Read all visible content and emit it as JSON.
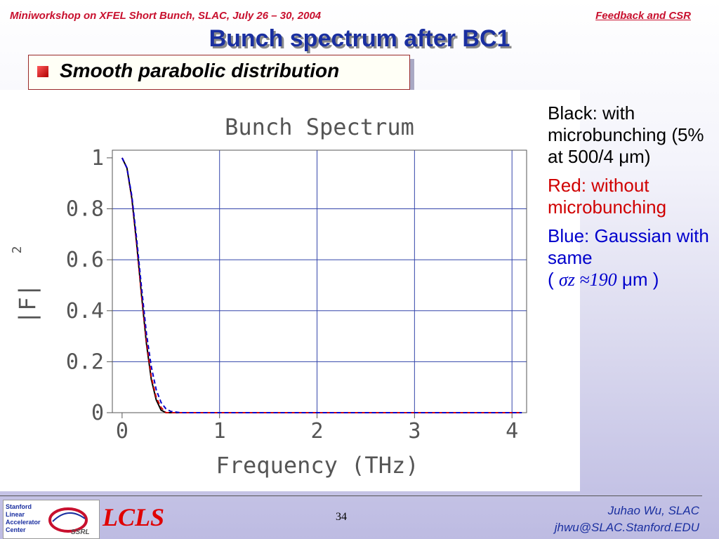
{
  "header": {
    "left": "Miniworkshop on XFEL Short Bunch, SLAC, July 26 – 30, 2004",
    "right": "Feedback and CSR"
  },
  "slide_title": "Bunch spectrum after BC1",
  "subtitle": "Smooth parabolic distribution",
  "notes": {
    "black": "Black: with microbunching (5% at 500/4 μm)",
    "red": "Red: without microbunching",
    "blue_prefix": "Blue: Gaussian with same",
    "blue_open": "(",
    "blue_sigma": "σz ≈190",
    "blue_unit": "μm )"
  },
  "footer": {
    "logo_letters": "Stanford Linear Accelerator Center",
    "logo_ssrl": "SSRL",
    "lcls": "LCLS",
    "page": "34",
    "author": "Juhao Wu, SLAC",
    "email": "jhwu@SLAC.Stanford.EDU"
  },
  "colors": {
    "black": "#000000",
    "red": "#d00000",
    "blue": "#0000cc",
    "title": "#1a2fa0",
    "header": "#c8102e"
  },
  "chart_data": {
    "type": "line",
    "title": "Bunch Spectrum",
    "xlabel": "Frequency (THz)",
    "ylabel": "|F|",
    "ylabel_superscript": "2",
    "xlim": [
      -0.1,
      4.15
    ],
    "ylim": [
      0,
      1.03
    ],
    "xticks": [
      0,
      1,
      2,
      3,
      4
    ],
    "xtick_labels": [
      "0",
      "1",
      "2",
      "3",
      "4"
    ],
    "yticks": [
      0,
      0.2,
      0.4,
      0.6,
      0.8,
      1
    ],
    "ytick_labels": [
      "0",
      "0.2",
      "0.4",
      "0.6",
      "0.8",
      "1"
    ],
    "grid": true,
    "series": [
      {
        "color": "#000000",
        "style": "solid",
        "x": [
          0,
          0.05,
          0.1,
          0.15,
          0.2,
          0.25,
          0.3,
          0.35,
          0.4,
          0.45,
          0.5,
          0.6,
          0.8,
          1.5,
          2.5,
          3.5,
          4.1
        ],
        "y": [
          1.0,
          0.96,
          0.84,
          0.66,
          0.46,
          0.27,
          0.13,
          0.05,
          0.01,
          0.0,
          0.0,
          0.0,
          0.0,
          0.0,
          0.0,
          0.0,
          0.0
        ]
      },
      {
        "color": "#d00000",
        "style": "dashed",
        "x": [
          0,
          0.05,
          0.1,
          0.15,
          0.2,
          0.25,
          0.3,
          0.35,
          0.4,
          0.45,
          0.5,
          0.6,
          0.8,
          1.5,
          2.5,
          3.5,
          4.1
        ],
        "y": [
          1.0,
          0.96,
          0.84,
          0.66,
          0.46,
          0.28,
          0.14,
          0.06,
          0.02,
          0.0,
          0.0,
          0.0,
          0.0,
          0.0,
          0.0,
          0.0,
          0.0
        ]
      },
      {
        "color": "#0000cc",
        "style": "dashed",
        "x": [
          0,
          0.05,
          0.1,
          0.15,
          0.2,
          0.25,
          0.3,
          0.35,
          0.4,
          0.45,
          0.5,
          0.6,
          0.8,
          1.5,
          2.5,
          3.5,
          4.1
        ],
        "y": [
          1.0,
          0.96,
          0.85,
          0.68,
          0.49,
          0.31,
          0.18,
          0.09,
          0.04,
          0.015,
          0.005,
          0.0,
          0.0,
          0.0,
          0.0,
          0.0,
          0.0
        ]
      }
    ]
  }
}
